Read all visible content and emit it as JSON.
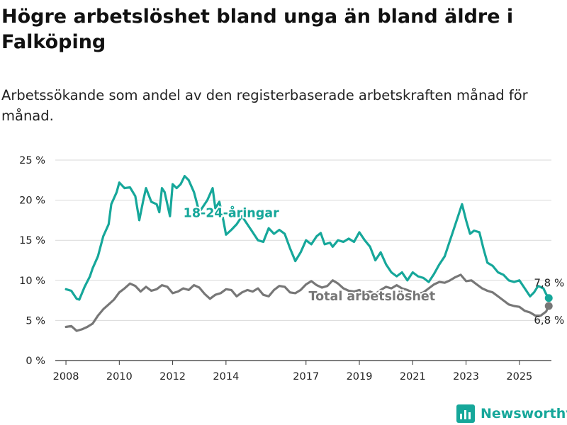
{
  "header": {
    "title": "Högre arbetslöshet bland unga än bland äldre i Falköping",
    "subtitle": "Arbetssökande som andel av den registerbaserade arbetskraften månad för månad."
  },
  "logo": {
    "text": "Newsworthy",
    "icon": "bar-chart-logo-icon",
    "color": "#16a79a"
  },
  "chart_data": {
    "type": "line",
    "title": "Högre arbetslöshet bland unga än bland äldre i Falköping",
    "subtitle": "Arbetssökande som andel av den registerbaserade arbetskraften månad för månad.",
    "xlabel": "",
    "ylabel": "",
    "xlim": [
      2007.6,
      2026.2
    ],
    "ylim": [
      0,
      25
    ],
    "grid": true,
    "x_ticks": [
      2008,
      2010,
      2012,
      2014,
      2017,
      2019,
      2021,
      2023,
      2025
    ],
    "x_tick_labels": [
      "2008",
      "2010",
      "2012",
      "2014",
      "2017",
      "2019",
      "2021",
      "2023",
      "2025"
    ],
    "y_ticks": [
      0,
      5,
      10,
      15,
      20,
      25
    ],
    "y_tick_labels": [
      "0 %",
      "5 %",
      "10 %",
      "15 %",
      "20 %",
      "25 %"
    ],
    "series": [
      {
        "name": "18-24-åringar",
        "color": "#16a79a",
        "end_label": "7,8 %",
        "points": [
          [
            2008.0,
            8.9
          ],
          [
            2008.2,
            8.7
          ],
          [
            2008.4,
            7.7
          ],
          [
            2008.5,
            7.6
          ],
          [
            2008.7,
            9.2
          ],
          [
            2008.9,
            10.5
          ],
          [
            2009.0,
            11.5
          ],
          [
            2009.2,
            13.0
          ],
          [
            2009.4,
            15.5
          ],
          [
            2009.6,
            17.0
          ],
          [
            2009.7,
            19.5
          ],
          [
            2009.9,
            21.0
          ],
          [
            2010.0,
            22.2
          ],
          [
            2010.2,
            21.5
          ],
          [
            2010.4,
            21.6
          ],
          [
            2010.6,
            20.5
          ],
          [
            2010.75,
            17.5
          ],
          [
            2010.9,
            20.0
          ],
          [
            2011.0,
            21.5
          ],
          [
            2011.2,
            19.8
          ],
          [
            2011.4,
            19.5
          ],
          [
            2011.5,
            18.5
          ],
          [
            2011.6,
            21.5
          ],
          [
            2011.7,
            21.0
          ],
          [
            2011.8,
            19.5
          ],
          [
            2011.9,
            18.0
          ],
          [
            2012.0,
            22.0
          ],
          [
            2012.15,
            21.5
          ],
          [
            2012.3,
            22.0
          ],
          [
            2012.45,
            23.0
          ],
          [
            2012.6,
            22.5
          ],
          [
            2012.8,
            21.0
          ],
          [
            2013.0,
            18.5
          ],
          [
            2013.3,
            20.0
          ],
          [
            2013.5,
            21.5
          ],
          [
            2013.6,
            19.0
          ],
          [
            2013.75,
            19.8
          ],
          [
            2013.9,
            17.5
          ],
          [
            2014.0,
            15.7
          ],
          [
            2014.2,
            16.3
          ],
          [
            2014.4,
            17.0
          ],
          [
            2014.6,
            18.0
          ],
          [
            2014.8,
            17.0
          ],
          [
            2015.0,
            16.0
          ],
          [
            2015.2,
            15.0
          ],
          [
            2015.4,
            14.8
          ],
          [
            2015.6,
            16.5
          ],
          [
            2015.8,
            15.8
          ],
          [
            2016.0,
            16.3
          ],
          [
            2016.2,
            15.8
          ],
          [
            2016.4,
            14.0
          ],
          [
            2016.6,
            12.4
          ],
          [
            2016.8,
            13.5
          ],
          [
            2017.0,
            15.0
          ],
          [
            2017.2,
            14.5
          ],
          [
            2017.4,
            15.5
          ],
          [
            2017.55,
            15.9
          ],
          [
            2017.7,
            14.5
          ],
          [
            2017.9,
            14.7
          ],
          [
            2018.0,
            14.2
          ],
          [
            2018.2,
            15.0
          ],
          [
            2018.4,
            14.8
          ],
          [
            2018.6,
            15.2
          ],
          [
            2018.8,
            14.8
          ],
          [
            2019.0,
            16.0
          ],
          [
            2019.2,
            15.0
          ],
          [
            2019.4,
            14.2
          ],
          [
            2019.6,
            12.5
          ],
          [
            2019.8,
            13.5
          ],
          [
            2020.0,
            12.0
          ],
          [
            2020.2,
            11.0
          ],
          [
            2020.4,
            10.5
          ],
          [
            2020.6,
            11.0
          ],
          [
            2020.8,
            10.0
          ],
          [
            2021.0,
            11.0
          ],
          [
            2021.2,
            10.5
          ],
          [
            2021.4,
            10.3
          ],
          [
            2021.6,
            9.8
          ],
          [
            2021.8,
            10.8
          ],
          [
            2022.0,
            12.0
          ],
          [
            2022.2,
            13.0
          ],
          [
            2022.35,
            14.5
          ],
          [
            2022.5,
            16.0
          ],
          [
            2022.7,
            18.0
          ],
          [
            2022.85,
            19.5
          ],
          [
            2023.0,
            17.5
          ],
          [
            2023.15,
            15.8
          ],
          [
            2023.3,
            16.2
          ],
          [
            2023.5,
            16.0
          ],
          [
            2023.65,
            14.0
          ],
          [
            2023.8,
            12.2
          ],
          [
            2024.0,
            11.8
          ],
          [
            2024.2,
            11.0
          ],
          [
            2024.4,
            10.7
          ],
          [
            2024.6,
            10.0
          ],
          [
            2024.8,
            9.8
          ],
          [
            2025.0,
            10.0
          ],
          [
            2025.2,
            9.0
          ],
          [
            2025.4,
            8.0
          ],
          [
            2025.55,
            8.5
          ],
          [
            2025.7,
            9.3
          ],
          [
            2025.9,
            9.0
          ],
          [
            2026.0,
            8.3
          ],
          [
            2026.1,
            7.8
          ]
        ]
      },
      {
        "name": "Total arbetslöshet",
        "color": "#777777",
        "end_label": "6,8 %",
        "points": [
          [
            2008.0,
            4.2
          ],
          [
            2008.2,
            4.3
          ],
          [
            2008.4,
            3.7
          ],
          [
            2008.6,
            3.9
          ],
          [
            2008.8,
            4.2
          ],
          [
            2009.0,
            4.6
          ],
          [
            2009.2,
            5.6
          ],
          [
            2009.4,
            6.4
          ],
          [
            2009.6,
            7.0
          ],
          [
            2009.8,
            7.6
          ],
          [
            2010.0,
            8.5
          ],
          [
            2010.2,
            9.0
          ],
          [
            2010.4,
            9.6
          ],
          [
            2010.6,
            9.3
          ],
          [
            2010.8,
            8.6
          ],
          [
            2011.0,
            9.2
          ],
          [
            2011.2,
            8.7
          ],
          [
            2011.4,
            8.9
          ],
          [
            2011.6,
            9.4
          ],
          [
            2011.8,
            9.2
          ],
          [
            2012.0,
            8.4
          ],
          [
            2012.2,
            8.6
          ],
          [
            2012.4,
            9.0
          ],
          [
            2012.6,
            8.8
          ],
          [
            2012.8,
            9.4
          ],
          [
            2013.0,
            9.1
          ],
          [
            2013.2,
            8.3
          ],
          [
            2013.4,
            7.7
          ],
          [
            2013.6,
            8.2
          ],
          [
            2013.8,
            8.4
          ],
          [
            2014.0,
            8.9
          ],
          [
            2014.2,
            8.8
          ],
          [
            2014.4,
            8.0
          ],
          [
            2014.6,
            8.5
          ],
          [
            2014.8,
            8.8
          ],
          [
            2015.0,
            8.6
          ],
          [
            2015.2,
            9.0
          ],
          [
            2015.4,
            8.2
          ],
          [
            2015.6,
            8.0
          ],
          [
            2015.8,
            8.8
          ],
          [
            2016.0,
            9.3
          ],
          [
            2016.2,
            9.2
          ],
          [
            2016.4,
            8.5
          ],
          [
            2016.6,
            8.4
          ],
          [
            2016.8,
            8.8
          ],
          [
            2017.0,
            9.5
          ],
          [
            2017.2,
            9.9
          ],
          [
            2017.4,
            9.4
          ],
          [
            2017.6,
            9.1
          ],
          [
            2017.8,
            9.3
          ],
          [
            2018.0,
            10.0
          ],
          [
            2018.2,
            9.6
          ],
          [
            2018.4,
            9.0
          ],
          [
            2018.6,
            8.7
          ],
          [
            2018.8,
            8.6
          ],
          [
            2019.0,
            8.8
          ],
          [
            2019.2,
            8.4
          ],
          [
            2019.4,
            8.6
          ],
          [
            2019.6,
            8.3
          ],
          [
            2019.8,
            8.8
          ],
          [
            2020.0,
            9.2
          ],
          [
            2020.2,
            9.0
          ],
          [
            2020.4,
            9.4
          ],
          [
            2020.6,
            9.0
          ],
          [
            2020.8,
            8.8
          ],
          [
            2021.0,
            8.5
          ],
          [
            2021.2,
            8.3
          ],
          [
            2021.4,
            8.5
          ],
          [
            2021.6,
            9.0
          ],
          [
            2021.8,
            9.5
          ],
          [
            2022.0,
            9.8
          ],
          [
            2022.2,
            9.7
          ],
          [
            2022.4,
            10.0
          ],
          [
            2022.6,
            10.4
          ],
          [
            2022.8,
            10.7
          ],
          [
            2023.0,
            9.9
          ],
          [
            2023.2,
            10.0
          ],
          [
            2023.4,
            9.5
          ],
          [
            2023.6,
            9.0
          ],
          [
            2023.8,
            8.7
          ],
          [
            2024.0,
            8.5
          ],
          [
            2024.2,
            8.0
          ],
          [
            2024.4,
            7.5
          ],
          [
            2024.6,
            7.0
          ],
          [
            2024.8,
            6.8
          ],
          [
            2025.0,
            6.7
          ],
          [
            2025.2,
            6.2
          ],
          [
            2025.4,
            6.0
          ],
          [
            2025.6,
            5.6
          ],
          [
            2025.8,
            5.6
          ],
          [
            2026.0,
            6.1
          ],
          [
            2026.1,
            6.8
          ]
        ]
      }
    ]
  }
}
